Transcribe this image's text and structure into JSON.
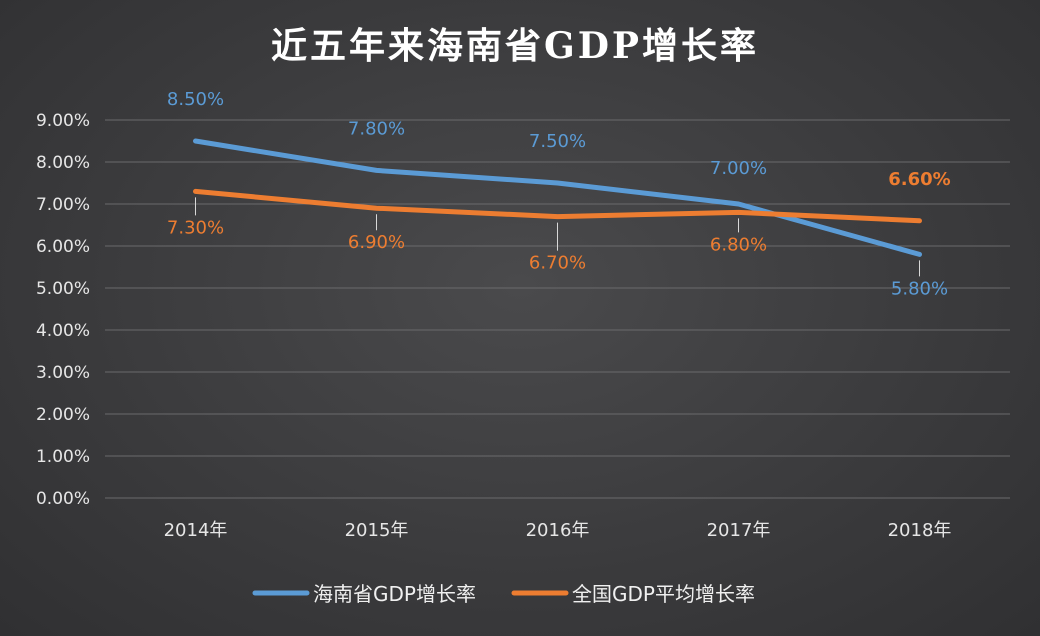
{
  "chart_data": {
    "type": "line",
    "title": "近五年来海南省GDP增长率",
    "categories": [
      "2014年",
      "2015年",
      "2016年",
      "2017年",
      "2018年"
    ],
    "y_ticks": [
      "0.00%",
      "1.00%",
      "2.00%",
      "3.00%",
      "4.00%",
      "5.00%",
      "6.00%",
      "7.00%",
      "8.00%",
      "9.00%"
    ],
    "ylim": [
      0,
      9
    ],
    "grid": true,
    "legend_position": "bottom",
    "series": [
      {
        "name": "海南省GDP增长率",
        "color": "#5b9bd5",
        "values": [
          8.5,
          7.8,
          7.5,
          7.0,
          5.8
        ],
        "labels": [
          "8.50%",
          "7.80%",
          "7.50%",
          "7.00%",
          "5.80%"
        ]
      },
      {
        "name": "全国GDP平均增长率",
        "color": "#ed7d31",
        "values": [
          7.3,
          6.9,
          6.7,
          6.8,
          6.6
        ],
        "labels": [
          "7.30%",
          "6.90%",
          "6.70%",
          "6.80%",
          "6.60%"
        ]
      }
    ]
  }
}
